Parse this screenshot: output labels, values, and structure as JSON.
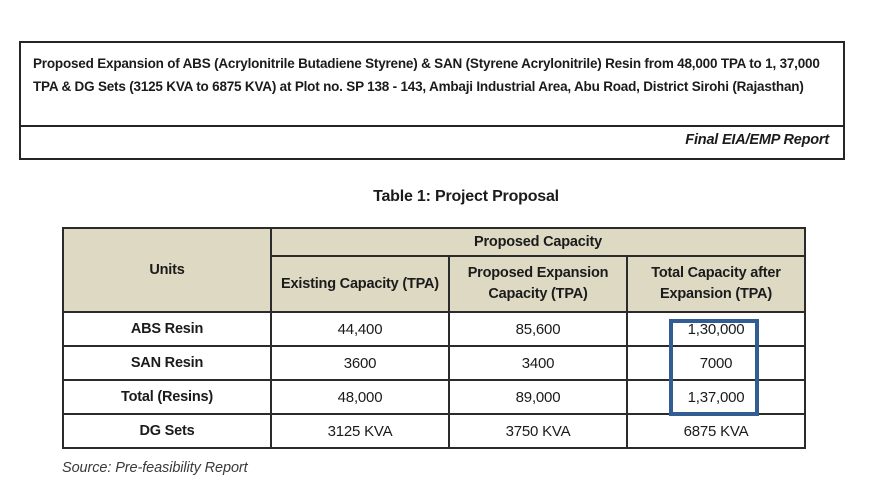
{
  "header": {
    "paragraph": "Proposed Expansion of ABS (Acrylonitrile Butadiene Styrene) & SAN (Styrene Acrylonitrile) Resin from 48,000 TPA to 1, 37,000 TPA & DG Sets (3125 KVA to 6875 KVA) at Plot no. SP 138 - 143, Ambaji Industrial Area, Abu Road, District Sirohi (Rajasthan)",
    "report_label": "Final EIA/EMP Report"
  },
  "table": {
    "caption": "Table 1: Project Proposal",
    "group_header": "Proposed Capacity",
    "columns": {
      "units": "Units",
      "existing": "Existing Capacity (TPA)",
      "expansion": "Proposed Expansion Capacity (TPA)",
      "total": "Total Capacity after Expansion (TPA)"
    },
    "rows": [
      {
        "unit": "ABS Resin",
        "existing": "44,400",
        "expansion": "85,600",
        "total": "1,30,000"
      },
      {
        "unit": "SAN Resin",
        "existing": "3600",
        "expansion": "3400",
        "total": "7000"
      },
      {
        "unit": "Total (Resins)",
        "existing": "48,000",
        "expansion": "89,000",
        "total": "1,37,000"
      },
      {
        "unit": "DG Sets",
        "existing": "3125 KVA",
        "expansion": "3750 KVA",
        "total": "6875 KVA"
      }
    ]
  },
  "source": "Source: Pre-feasibility Report",
  "colors": {
    "table_header_bg": "#ddd9c3",
    "highlight_border": "#315d92",
    "border": "#2b2b2b"
  }
}
